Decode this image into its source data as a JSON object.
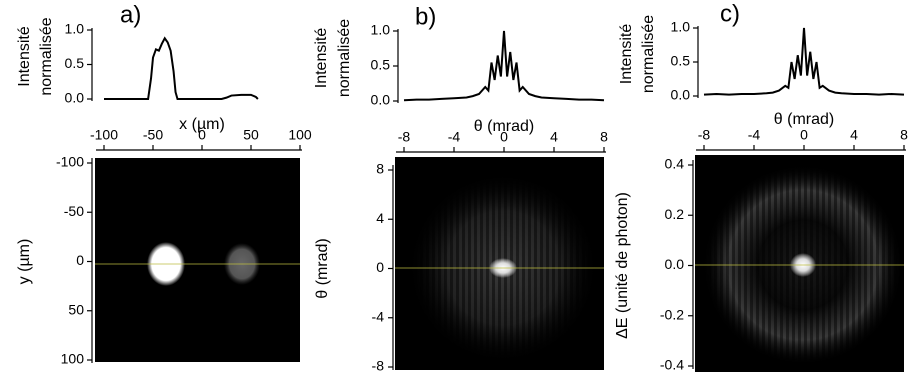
{
  "chart_data": [
    {
      "type": "line",
      "panel_label": "a)",
      "ylabel": [
        "Intensité",
        "normalisée"
      ],
      "xlabel": "x (µm)",
      "xlim": [
        -100,
        100
      ],
      "ylim": [
        0,
        1
      ],
      "yticks": [
        {
          "value": 0,
          "label": "0.0"
        },
        {
          "value": 0.5,
          "label": "0.5"
        },
        {
          "value": 1,
          "label": "1.0"
        }
      ],
      "color": "#000000",
      "x": [
        -100,
        -60,
        -55,
        -52,
        -50,
        -47,
        -44,
        -41,
        -38,
        -35,
        -32,
        -29,
        -27,
        -25,
        -20,
        20,
        25,
        30,
        40,
        50,
        55,
        57
      ],
      "values": [
        0,
        0,
        0,
        0.3,
        0.6,
        0.72,
        0.7,
        0.8,
        0.88,
        0.82,
        0.7,
        0.4,
        0.1,
        0,
        0,
        0,
        0.02,
        0.05,
        0.06,
        0.06,
        0.03,
        0
      ]
    },
    {
      "type": "image",
      "ylabel": "y (µm)",
      "xlim": [
        -100,
        100
      ],
      "ylim": [
        100,
        -100
      ],
      "xticks": [
        -100,
        -50,
        0,
        50,
        100
      ],
      "yticks": [
        -100,
        -50,
        0,
        50,
        100
      ]
    },
    {
      "type": "line",
      "panel_label": "b)",
      "ylabel": [
        "Intensité",
        "normalisée"
      ],
      "xlabel": "θ (mrad)",
      "xlim": [
        -8,
        8
      ],
      "ylim": [
        0,
        1
      ],
      "yticks": [
        {
          "value": 0,
          "label": "0.0"
        },
        {
          "value": 0.5,
          "label": "0.5"
        },
        {
          "value": 1,
          "label": "1.0"
        }
      ],
      "color": "#000000",
      "x": [
        -8,
        -7,
        -6,
        -5,
        -4,
        -3,
        -2.5,
        -2,
        -1.5,
        -1.25,
        -1,
        -0.75,
        -0.5,
        -0.25,
        0,
        0.25,
        0.5,
        0.75,
        1,
        1.25,
        1.5,
        2,
        2.5,
        3,
        4,
        5,
        6,
        7,
        8
      ],
      "values": [
        0.01,
        0.02,
        0.02,
        0.03,
        0.04,
        0.05,
        0.07,
        0.1,
        0.2,
        0.15,
        0.55,
        0.3,
        0.65,
        0.35,
        1.0,
        0.35,
        0.7,
        0.3,
        0.55,
        0.15,
        0.2,
        0.1,
        0.07,
        0.05,
        0.04,
        0.03,
        0.02,
        0.02,
        0.01
      ]
    },
    {
      "type": "image",
      "ylabel": "θ (mrad)",
      "xlim": [
        -8,
        8
      ],
      "ylim": [
        -8,
        8
      ],
      "xticks": [
        -8,
        -4,
        0,
        4,
        8
      ],
      "yticks": [
        -8,
        -4,
        0,
        4,
        8
      ]
    },
    {
      "type": "line",
      "panel_label": "c)",
      "ylabel": [
        "Intensité",
        "normalisée"
      ],
      "xlabel": "θ (mrad)",
      "xlim": [
        -8,
        8
      ],
      "ylim": [
        0,
        1
      ],
      "yticks": [
        {
          "value": 0,
          "label": "0.0"
        },
        {
          "value": 0.5,
          "label": "0.5"
        },
        {
          "value": 1,
          "label": "1.0"
        }
      ],
      "color": "#000000",
      "x": [
        -8,
        -7,
        -6,
        -5,
        -4,
        -3,
        -2.5,
        -2,
        -1.5,
        -1.25,
        -1,
        -0.75,
        -0.5,
        -0.25,
        0,
        0.25,
        0.5,
        0.75,
        1,
        1.25,
        1.5,
        2,
        2.5,
        3,
        4,
        5,
        6,
        7,
        8
      ],
      "values": [
        0.02,
        0.03,
        0.02,
        0.03,
        0.03,
        0.04,
        0.05,
        0.08,
        0.15,
        0.12,
        0.5,
        0.25,
        0.6,
        0.3,
        1.0,
        0.3,
        0.65,
        0.25,
        0.5,
        0.12,
        0.15,
        0.08,
        0.05,
        0.04,
        0.03,
        0.03,
        0.02,
        0.03,
        0.02
      ]
    },
    {
      "type": "image",
      "ylabel": "ΔE (unité de photon)",
      "xlim": [
        -8,
        8
      ],
      "ylim": [
        -0.4,
        0.4
      ],
      "xticks": [
        -8,
        -4,
        0,
        4,
        8
      ],
      "yticks": [
        -0.4,
        -0.2,
        {
          "value": 0,
          "label": "0.0"
        },
        0.2,
        0.4
      ]
    }
  ]
}
